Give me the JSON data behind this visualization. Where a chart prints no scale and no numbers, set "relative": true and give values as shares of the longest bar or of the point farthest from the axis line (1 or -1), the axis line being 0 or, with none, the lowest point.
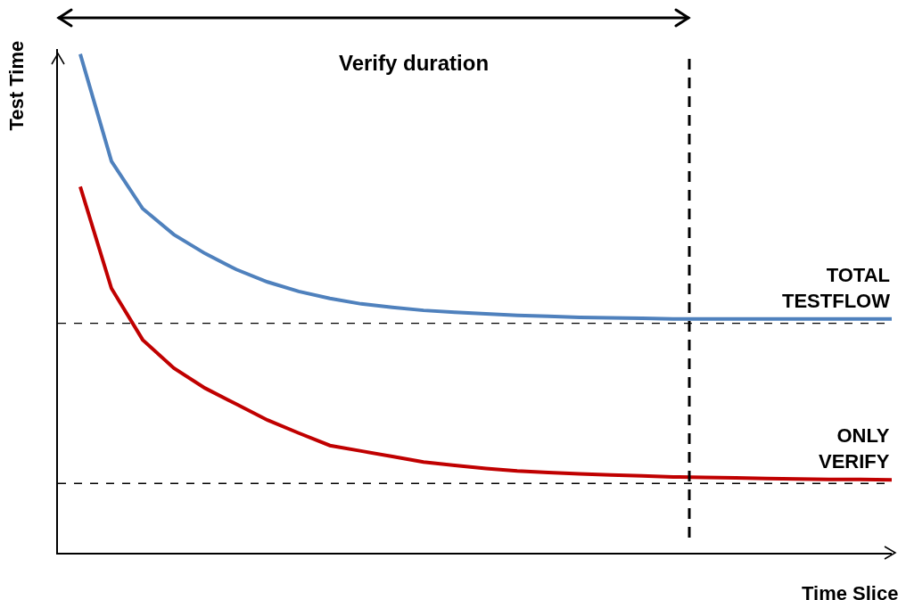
{
  "chart_data": {
    "type": "line",
    "relative": true,
    "xlabel": "Time Slice",
    "ylabel": "Test Time",
    "categories": [
      null,
      null,
      null,
      null,
      null,
      null,
      null,
      null,
      null,
      null,
      null,
      null,
      null,
      null,
      null,
      null,
      null,
      null,
      null,
      null,
      null,
      null,
      null,
      null,
      null,
      null,
      null
    ],
    "series": [
      {
        "name": "TOTAL TESTFLOW",
        "color": "#4f81bd",
        "values": [
          1.0,
          0.785,
          0.69,
          0.638,
          0.6,
          0.568,
          0.543,
          0.524,
          0.51,
          0.499,
          0.492,
          0.486,
          0.482,
          0.479,
          0.476,
          0.474,
          0.472,
          0.471,
          0.47,
          0.469,
          0.469,
          0.469,
          0.469,
          0.469,
          0.469,
          0.469,
          0.469
        ]
      },
      {
        "name": "ONLY VERIFY",
        "color": "#c00000",
        "values": [
          0.734,
          0.53,
          0.427,
          0.37,
          0.33,
          0.298,
          0.266,
          0.24,
          0.215,
          0.204,
          0.193,
          0.182,
          0.175,
          0.169,
          0.164,
          0.161,
          0.158,
          0.156,
          0.154,
          0.152,
          0.151,
          0.15,
          0.149,
          0.148,
          0.147,
          0.147,
          0.146
        ]
      }
    ],
    "ref_lines": [
      {
        "axis": "y",
        "value": 0.46,
        "color": "#000000",
        "line_style": "dashed"
      },
      {
        "axis": "y",
        "value": 0.139,
        "color": "#000000",
        "line_style": "dashed"
      }
    ],
    "annotations": [
      "Verify duration"
    ],
    "legend": false,
    "marker": "none",
    "line_style": "solid"
  }
}
